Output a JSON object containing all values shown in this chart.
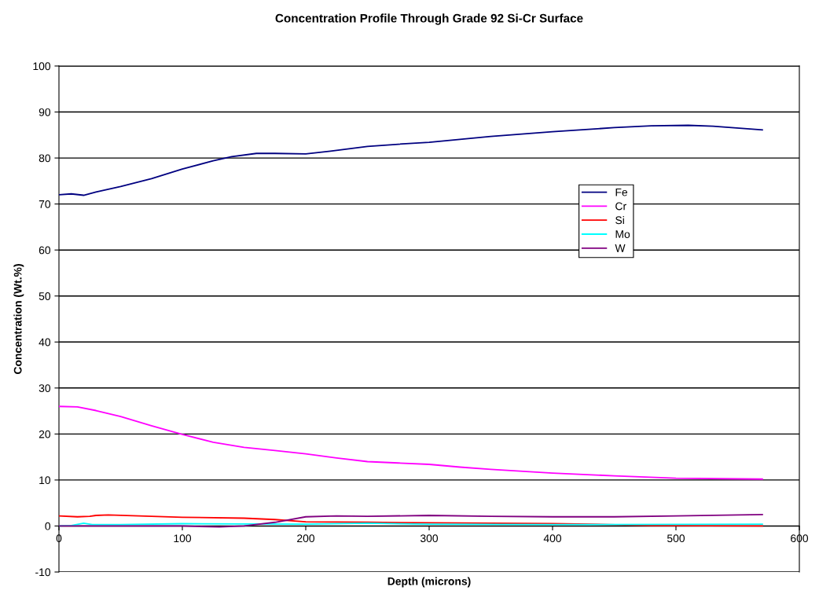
{
  "chart_data": {
    "type": "line",
    "title": "Concentration Profile Through Grade 92 Si-Cr Surface",
    "xlabel": "Depth (microns)",
    "ylabel": "Concentration (Wt.%)",
    "xlim": [
      0,
      600
    ],
    "xticks": [
      0,
      100,
      200,
      300,
      400,
      500,
      600
    ],
    "ylim": [
      -10,
      100
    ],
    "yticks": [
      -10,
      0,
      10,
      20,
      30,
      40,
      50,
      60,
      70,
      80,
      90,
      100
    ],
    "grid": "y",
    "legend": "right",
    "marker": "none",
    "line_style": "solid",
    "series": [
      {
        "name": "Fe",
        "color": "#000080",
        "x": [
          0,
          10,
          20,
          30,
          50,
          75,
          100,
          125,
          140,
          160,
          175,
          200,
          220,
          250,
          275,
          300,
          350,
          400,
          450,
          480,
          510,
          530,
          570
        ],
        "values": [
          72,
          72.2,
          71.9,
          72.6,
          73.8,
          75.5,
          77.6,
          79.4,
          80.3,
          81,
          81,
          80.9,
          81.5,
          82.5,
          83,
          83.4,
          84.7,
          85.7,
          86.6,
          87,
          87.1,
          86.9,
          86.1
        ]
      },
      {
        "name": "Cr",
        "color": "#ff00ff",
        "x": [
          0,
          15,
          30,
          50,
          75,
          100,
          125,
          150,
          175,
          200,
          225,
          250,
          275,
          300,
          325,
          350,
          400,
          450,
          500,
          570
        ],
        "values": [
          26,
          25.9,
          25.1,
          23.8,
          21.8,
          19.9,
          18.2,
          17.1,
          16.4,
          15.7,
          14.8,
          14,
          13.7,
          13.4,
          12.8,
          12.3,
          11.5,
          10.9,
          10.4,
          10.2
        ]
      },
      {
        "name": "Si",
        "color": "#ff0000",
        "x": [
          0,
          15,
          25,
          30,
          40,
          100,
          150,
          175,
          200,
          250,
          300,
          400,
          430,
          480,
          570
        ],
        "values": [
          2.2,
          2.0,
          2.1,
          2.3,
          2.4,
          1.9,
          1.7,
          1.4,
          0.9,
          0.8,
          0.7,
          0.5,
          0.4,
          0.1,
          0
        ]
      },
      {
        "name": "Mo",
        "color": "#00ffff",
        "x": [
          0,
          10,
          20,
          27,
          50,
          100,
          200,
          250,
          300,
          400,
          570
        ],
        "values": [
          0,
          0.1,
          0.6,
          0.3,
          0.3,
          0.5,
          0.4,
          0.6,
          0.4,
          0.3,
          0.4
        ]
      },
      {
        "name": "W",
        "color": "#800080",
        "x": [
          0,
          100,
          130,
          150,
          175,
          200,
          225,
          250,
          300,
          350,
          400,
          450,
          500,
          570
        ],
        "values": [
          0,
          0,
          -0.2,
          0,
          0.8,
          2.0,
          2.2,
          2.1,
          2.3,
          2.1,
          2.0,
          2.0,
          2.2,
          2.5
        ]
      }
    ]
  }
}
